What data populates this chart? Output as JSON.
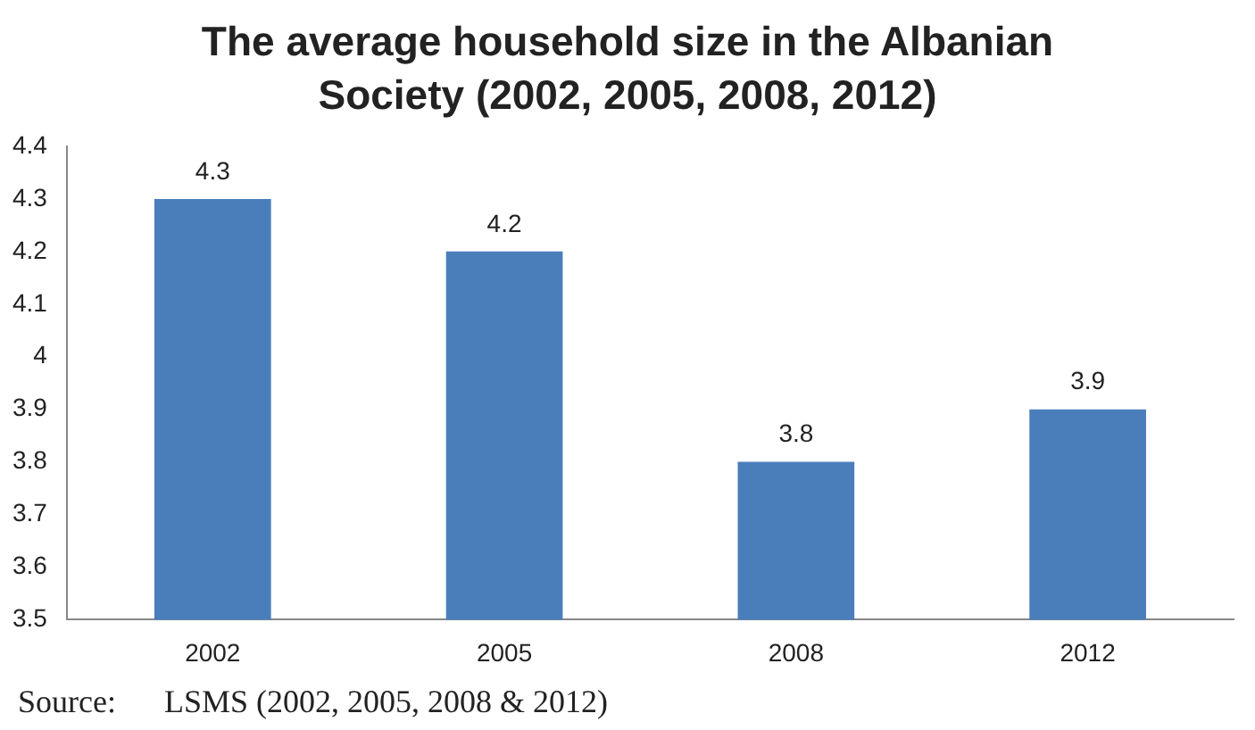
{
  "chart_data": {
    "type": "bar",
    "title": "The average household size in the Albanian Society (2002, 2005, 2008, 2012)",
    "categories": [
      "2002",
      "2005",
      "2008",
      "2012"
    ],
    "values": [
      4.3,
      4.2,
      3.8,
      3.9
    ],
    "color": "#4a7ebb",
    "ylim": [
      3.5,
      4.4
    ],
    "yticks": [
      3.5,
      3.6,
      3.7,
      3.8,
      3.9,
      4,
      4.1,
      4.2,
      4.3,
      4.4
    ],
    "grid": false,
    "data_labels": true,
    "annotations": [
      "Source:      LSMS (2002, 2005, 2008 & 2012)"
    ]
  }
}
